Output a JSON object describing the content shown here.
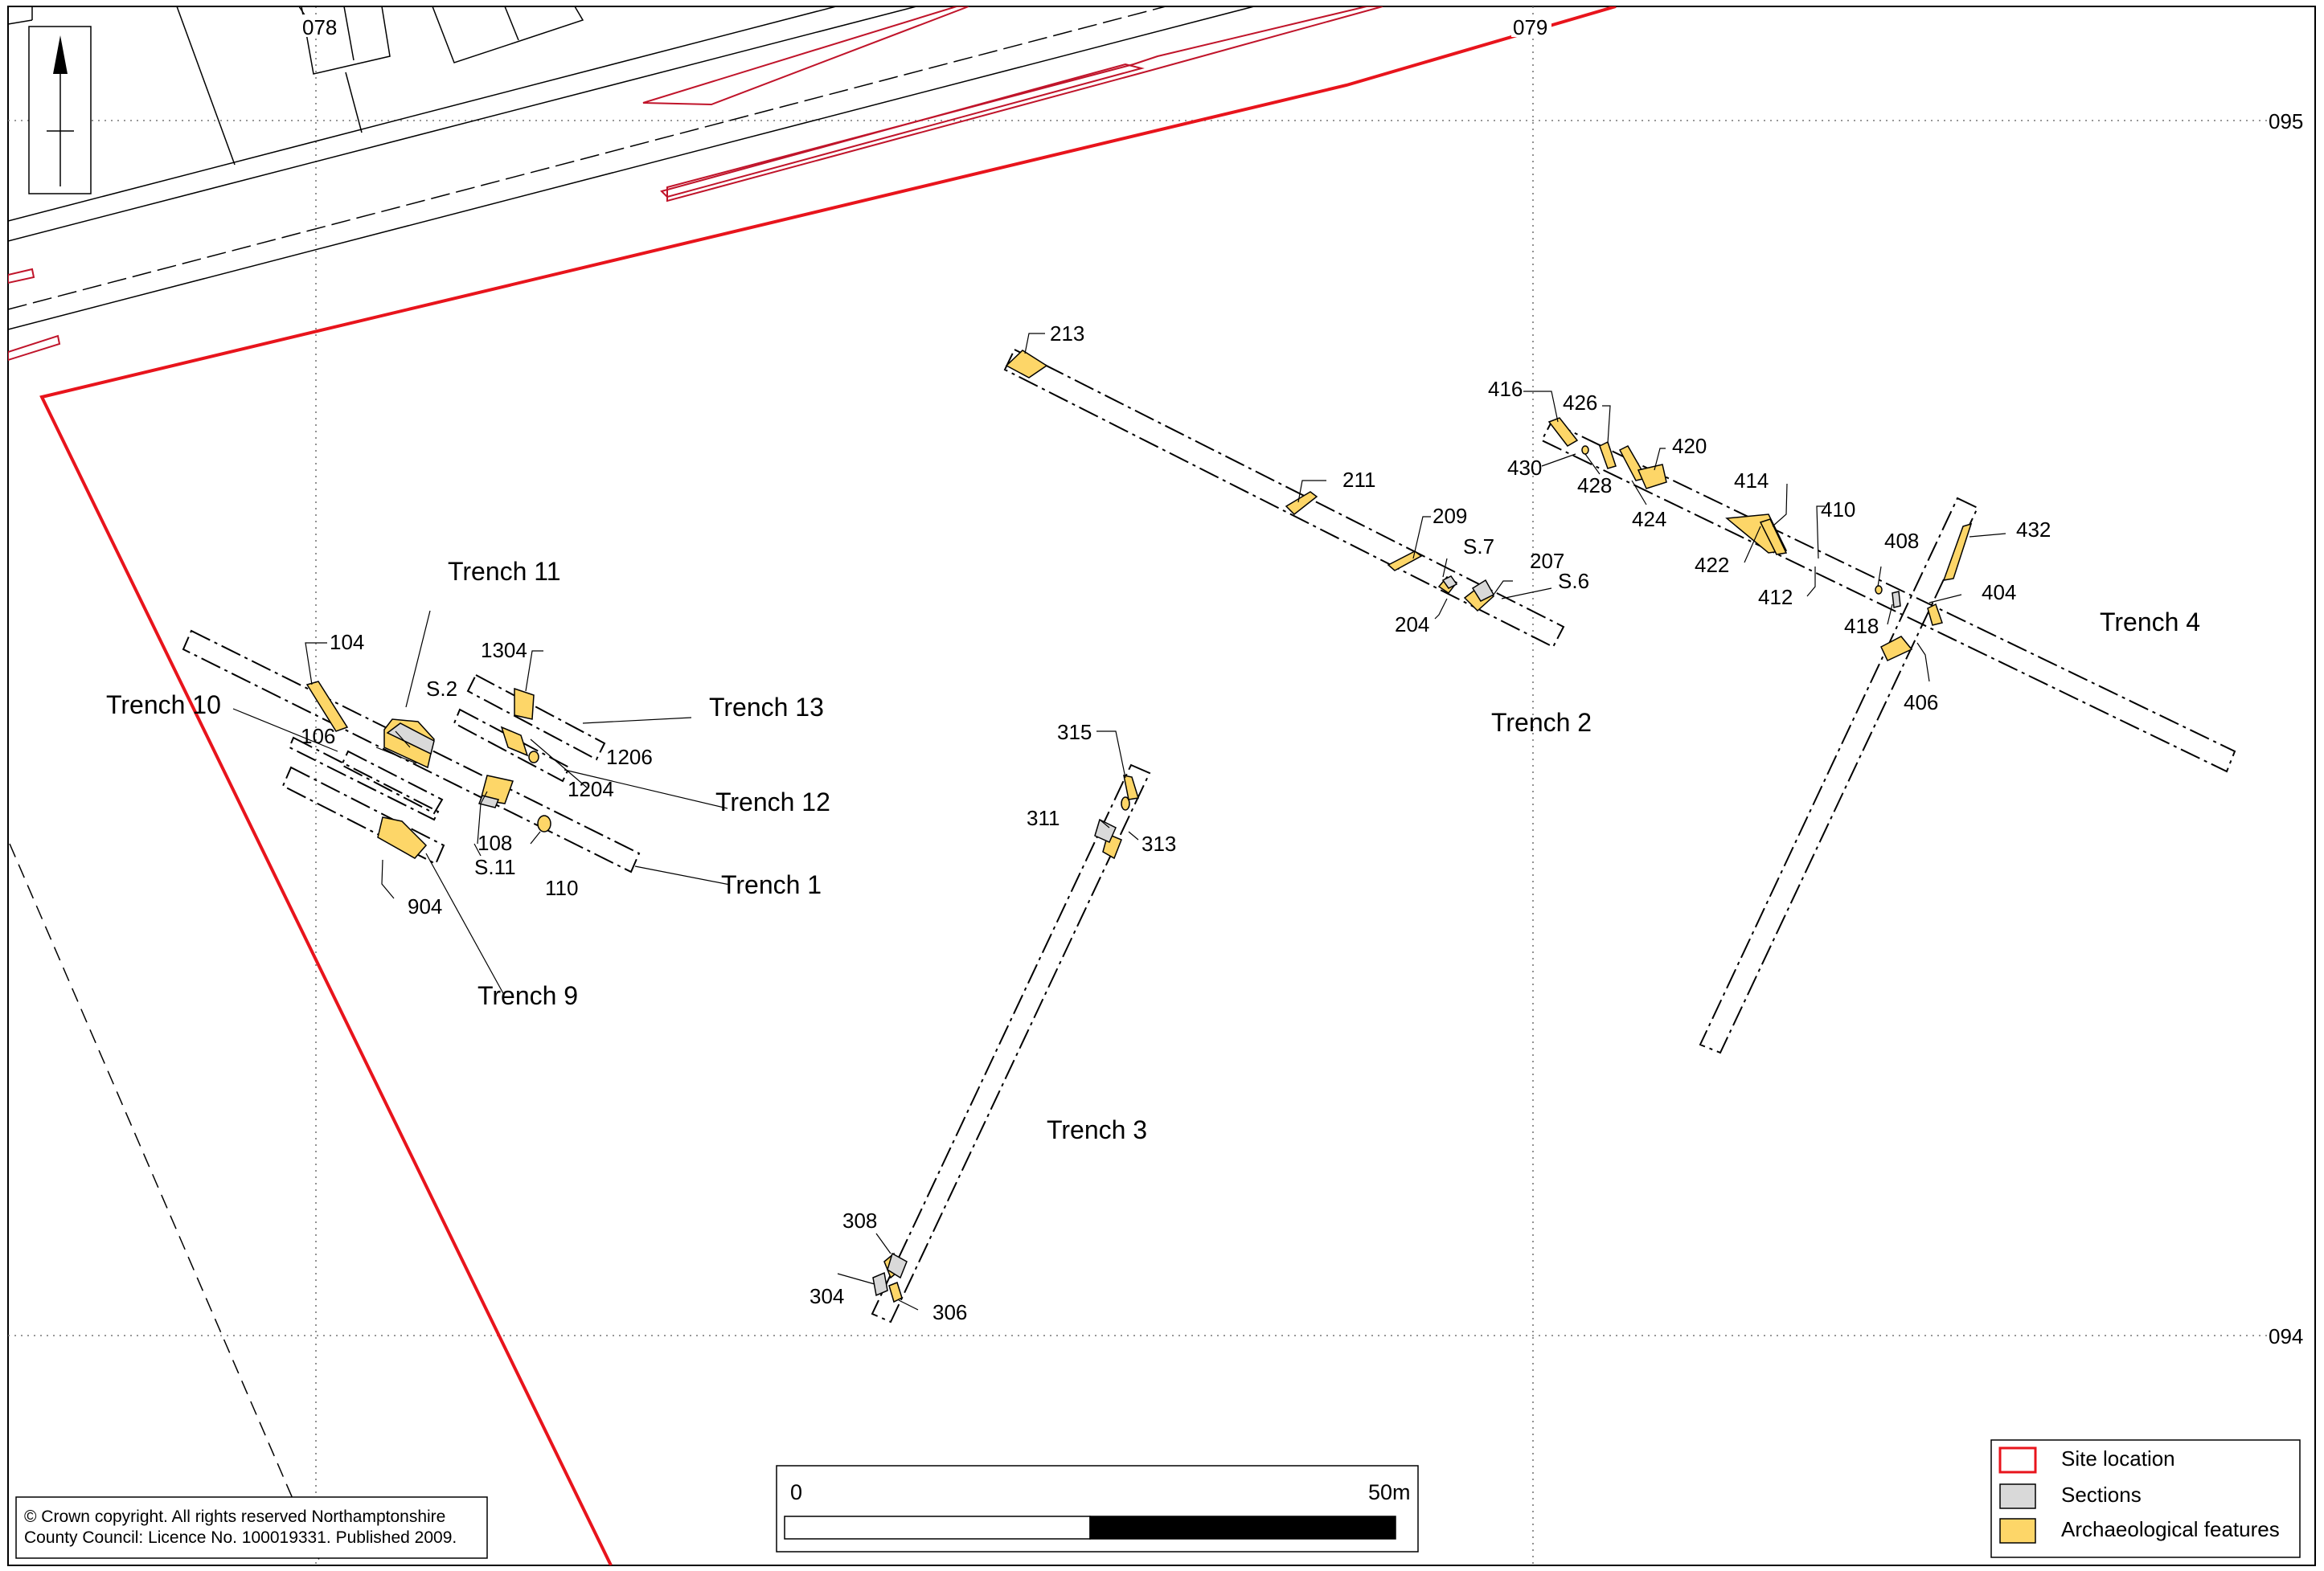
{
  "grid": {
    "eastings": [
      "078",
      "079"
    ],
    "northings": [
      "095",
      "094"
    ]
  },
  "trenches": {
    "t1": "Trench 1",
    "t2": "Trench 2",
    "t3": "Trench 3",
    "t4": "Trench 4",
    "t9": "Trench 9",
    "t10": "Trench 10",
    "t11": "Trench 11",
    "t12": "Trench 12",
    "t13": "Trench 13"
  },
  "features": {
    "f104": "104",
    "f106": "106",
    "f108": "108",
    "f110": "110",
    "f1204": "1204",
    "f1206": "1206",
    "f1304": "1304",
    "f904": "904",
    "s2": "S.2",
    "s11": "S.11",
    "f213": "213",
    "f211": "211",
    "f209": "209",
    "s7": "S.7",
    "f207": "207",
    "s6": "S.6",
    "f204": "204",
    "f315": "315",
    "f311": "311",
    "f313": "313",
    "f308": "308",
    "f304": "304",
    "f306": "306",
    "f416": "416",
    "f426": "426",
    "f420": "420",
    "f430": "430",
    "f428": "428",
    "f424": "424",
    "f414": "414",
    "f410": "410",
    "f422": "422",
    "f412": "412",
    "f408": "408",
    "f432": "432",
    "f404": "404",
    "f418": "418",
    "f406": "406"
  },
  "legend": {
    "items": [
      {
        "label": "Site location",
        "style": "outline",
        "color": "#e8141c"
      },
      {
        "label": "Sections",
        "style": "fill",
        "color": "#d9d9d9"
      },
      {
        "label": "Archaeological features",
        "style": "fill",
        "color": "#fdd668"
      }
    ]
  },
  "scale": {
    "start": "0",
    "end": "50m"
  },
  "copyright": {
    "line1": "© Crown copyright. All rights reserved Northamptonshire",
    "line2": "County Council: Licence No. 100019331. Published 2009."
  },
  "colors": {
    "site_boundary": "#e8141c",
    "feature_fill": "#fdd668",
    "section_fill": "#d9d9d9",
    "red_features": "#c0142a"
  }
}
